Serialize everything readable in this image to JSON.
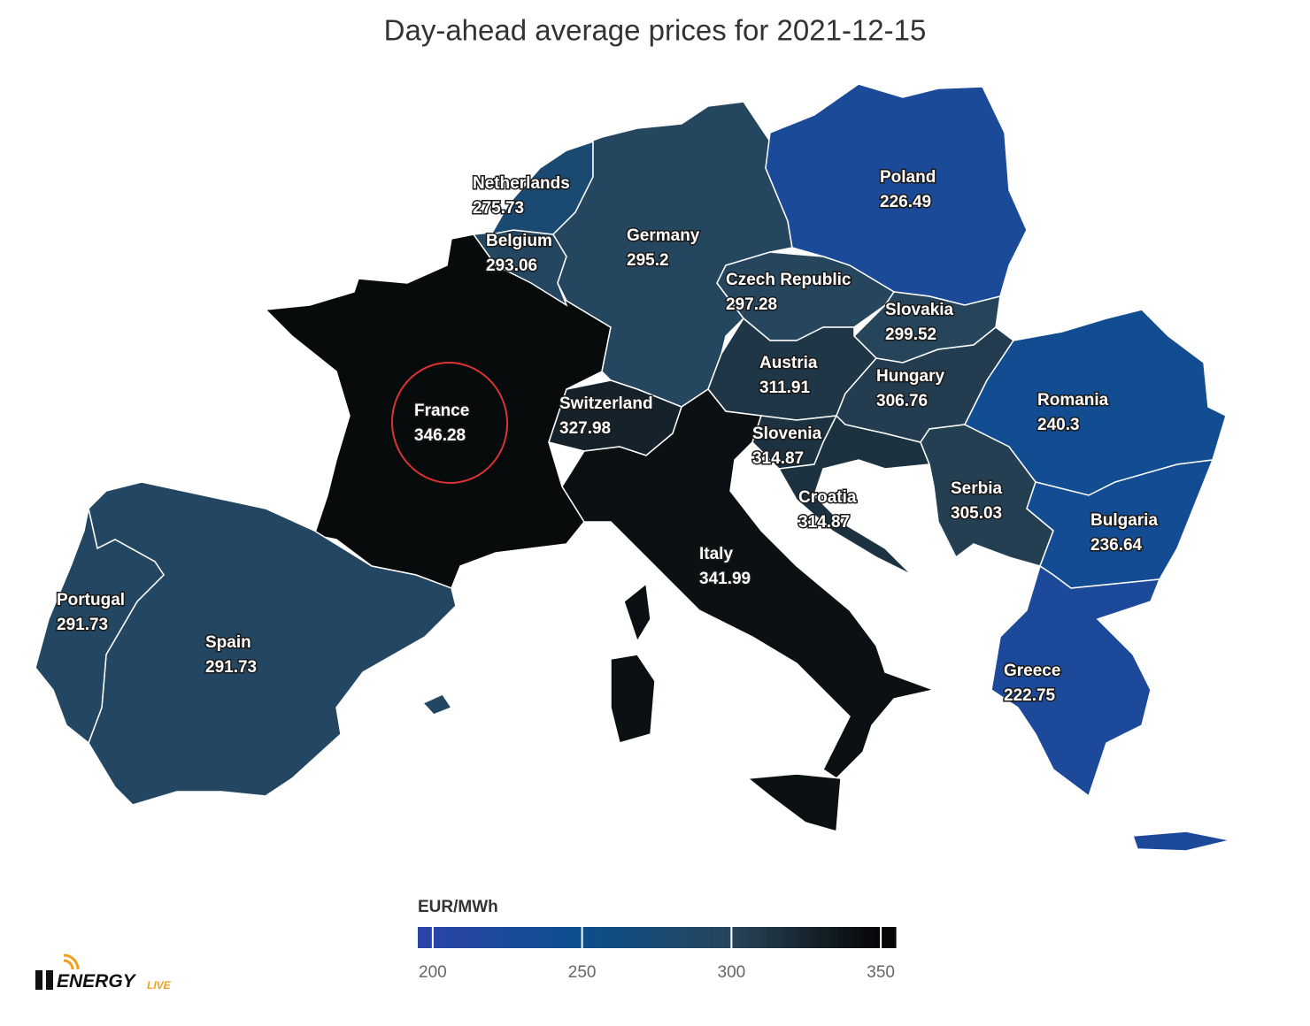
{
  "chart_data": {
    "type": "choropleth",
    "title": "Day-ahead average prices for 2021-12-15",
    "regions": [
      {
        "name": "France",
        "value": 346.28
      },
      {
        "name": "Spain",
        "value": 291.73
      },
      {
        "name": "Portugal",
        "value": 291.73
      },
      {
        "name": "Belgium",
        "value": 293.06
      },
      {
        "name": "Netherlands",
        "value": 275.73
      },
      {
        "name": "Germany",
        "value": 295.2
      },
      {
        "name": "Poland",
        "value": 226.49
      },
      {
        "name": "Czech Republic",
        "value": 297.28
      },
      {
        "name": "Slovakia",
        "value": 299.52
      },
      {
        "name": "Austria",
        "value": 311.91
      },
      {
        "name": "Switzerland",
        "value": 327.98
      },
      {
        "name": "Italy",
        "value": 341.99
      },
      {
        "name": "Slovenia",
        "value": 314.87
      },
      {
        "name": "Croatia",
        "value": 314.87
      },
      {
        "name": "Hungary",
        "value": 306.76
      },
      {
        "name": "Serbia",
        "value": 305.03
      },
      {
        "name": "Romania",
        "value": 240.3
      },
      {
        "name": "Bulgaria",
        "value": 236.64
      },
      {
        "name": "Greece",
        "value": 222.75
      }
    ],
    "colorbar": {
      "title": "EUR/MWh",
      "lim": [
        195,
        355
      ],
      "ticks": [
        200,
        250,
        300,
        350
      ],
      "colors": [
        "#2b44a8",
        "#0c4f8c",
        "#27455a",
        "#060606"
      ]
    }
  },
  "logo": {
    "word": "ENERGY",
    "suffix": "LIVE"
  }
}
